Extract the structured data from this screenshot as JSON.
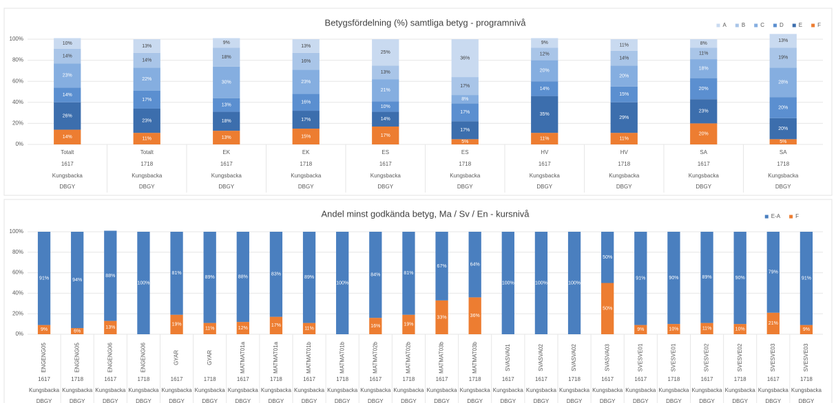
{
  "chart_data": [
    {
      "type": "stacked_bar",
      "title": "Betygsfördelning (%) samtliga betyg - programnivå",
      "categories": [
        "Totalt",
        "Totalt",
        "EK",
        "EK",
        "ES",
        "ES",
        "HV",
        "HV",
        "SA",
        "SA"
      ],
      "category_years": [
        "1617",
        "1718",
        "1617",
        "1718",
        "1617",
        "1718",
        "1617",
        "1718",
        "1617",
        "1718"
      ],
      "category_places": [
        "Kungsbacka",
        "Kungsbacka",
        "Kungsbacka",
        "Kungsbacka",
        "Kungsbacka",
        "Kungsbacka",
        "Kungsbacka",
        "Kungsbacka",
        "Kungsbacka",
        "Kungsbacka"
      ],
      "category_schools": [
        "DBGY",
        "DBGY",
        "DBGY",
        "DBGY",
        "DBGY",
        "DBGY",
        "DBGY",
        "DBGY",
        "DBGY",
        "DBGY"
      ],
      "legend_order": [
        5,
        4,
        3,
        2,
        1,
        0
      ],
      "series": [
        {
          "name": "F",
          "color": "#ed7d31",
          "label_color": "#ffffff",
          "values": [
            14,
            11,
            13,
            15,
            17,
            5,
            11,
            11,
            20,
            5
          ],
          "value_labels": [
            "14%",
            "11%",
            "13%",
            "15%",
            "17%",
            "5%",
            "11%",
            "11%",
            "20%",
            "5%"
          ]
        },
        {
          "name": "E",
          "color": "#3c6ead",
          "label_color": "#ffffff",
          "values": [
            26,
            23,
            18,
            17,
            14,
            17,
            35,
            29,
            23,
            20
          ],
          "value_labels": [
            "26%",
            "23%",
            "18%",
            "17%",
            "14%",
            "17%",
            "35%",
            "29%",
            "23%",
            "20%"
          ]
        },
        {
          "name": "D",
          "color": "#5b8fd0",
          "label_color": "#ffffff",
          "values": [
            14,
            17,
            13,
            16,
            10,
            17,
            14,
            15,
            20,
            20
          ],
          "value_labels": [
            "14%",
            "17%",
            "13%",
            "16%",
            "10%",
            "17%",
            "14%",
            "15%",
            "20%",
            "20%"
          ]
        },
        {
          "name": "C",
          "color": "#85aee0",
          "label_color": "#ffffff",
          "values": [
            23,
            22,
            30,
            23,
            21,
            8,
            20,
            20,
            18,
            28
          ],
          "value_labels": [
            "23%",
            "22%",
            "30%",
            "23%",
            "21%",
            "8%",
            "20%",
            "20%",
            "18%",
            "28%"
          ]
        },
        {
          "name": "B",
          "color": "#a9c5e8",
          "label_color": "#404040",
          "values": [
            14,
            14,
            18,
            16,
            13,
            17,
            12,
            14,
            11,
            19
          ],
          "value_labels": [
            "14%",
            "14%",
            "18%",
            "16%",
            "13%",
            "17%",
            "12%",
            "14%",
            "11%",
            "19%"
          ]
        },
        {
          "name": "A",
          "color": "#c9daf0",
          "label_color": "#404040",
          "values": [
            10,
            13,
            9,
            13,
            25,
            36,
            9,
            11,
            8,
            13
          ],
          "value_labels": [
            "10%",
            "13%",
            "9%",
            "13%",
            "25%",
            "36%",
            "9%",
            "11%",
            "8%",
            "13%"
          ]
        }
      ],
      "ylim": [
        0,
        100
      ],
      "yticks": [
        {
          "value": 0,
          "label": "0%"
        },
        {
          "value": 20,
          "label": "20%"
        },
        {
          "value": 40,
          "label": "40%"
        },
        {
          "value": 60,
          "label": "60%"
        },
        {
          "value": 80,
          "label": "80%"
        },
        {
          "value": 100,
          "label": "100%"
        }
      ],
      "grid": true,
      "legend": "top-right"
    },
    {
      "type": "stacked_bar",
      "title": "Andel minst godkända betyg, Ma / Sv / En - kursnivå",
      "categories": [
        "ENGENG05",
        "ENGENG05",
        "ENGENG06",
        "ENGENG06",
        "GYAR",
        "GYAR",
        "MATMAT01a",
        "MATMAT01a",
        "MATMAT01b",
        "MATMAT01b",
        "MATMAT02b",
        "MATMAT02b",
        "MATMAT03b",
        "MATMAT03b",
        "SVASVA01",
        "SVASVA02",
        "SVASVA02",
        "SVASVA03",
        "SVESVE01",
        "SVESVE01",
        "SVESVE02",
        "SVESVE02",
        "SVESVE03",
        "SVESVE03"
      ],
      "category_years": [
        "1617",
        "1718",
        "1617",
        "1718",
        "1617",
        "1718",
        "1617",
        "1718",
        "1617",
        "1718",
        "1617",
        "1718",
        "1617",
        "1718",
        "1617",
        "1617",
        "1718",
        "1617",
        "1617",
        "1718",
        "1617",
        "1718",
        "1617",
        "1718"
      ],
      "category_places": [
        "Kungsbacka",
        "Kungsbacka",
        "Kungsbacka",
        "Kungsbacka",
        "Kungsbacka",
        "Kungsbacka",
        "Kungsbacka",
        "Kungsbacka",
        "Kungsbacka",
        "Kungsbacka",
        "Kungsbacka",
        "Kungsbacka",
        "Kungsbacka",
        "Kungsbacka",
        "Kungsbacka",
        "Kungsbacka",
        "Kungsbacka",
        "Kungsbacka",
        "Kungsbacka",
        "Kungsbacka",
        "Kungsbacka",
        "Kungsbacka",
        "Kungsbacka",
        "Kungsbacka"
      ],
      "category_schools": [
        "DBGY",
        "DBGY",
        "DBGY",
        "DBGY",
        "DBGY",
        "DBGY",
        "DBGY",
        "DBGY",
        "DBGY",
        "DBGY",
        "DBGY",
        "DBGY",
        "DBGY",
        "DBGY",
        "DBGY",
        "DBGY",
        "DBGY",
        "DBGY",
        "DBGY",
        "DBGY",
        "DBGY",
        "DBGY",
        "DBGY",
        "DBGY"
      ],
      "legend_order": [
        1,
        0
      ],
      "series": [
        {
          "name": "F",
          "color": "#ed7d31",
          "label_color": "#ffffff",
          "values": [
            9,
            6,
            13,
            0,
            19,
            11,
            12,
            17,
            11,
            0,
            16,
            19,
            33,
            36,
            0,
            0,
            0,
            50,
            9,
            10,
            11,
            10,
            21,
            9
          ],
          "value_labels": [
            "9%",
            "6%",
            "13%",
            null,
            "19%",
            "11%",
            "12%",
            "17%",
            "11%",
            null,
            "16%",
            "19%",
            "33%",
            "36%",
            null,
            null,
            null,
            "50%",
            "9%",
            "10%",
            "11%",
            "10%",
            "21%",
            "9%"
          ]
        },
        {
          "name": "E-A",
          "color": "#4a7fbf",
          "label_color": "#ffffff",
          "values": [
            91,
            94,
            88,
            100,
            81,
            89,
            88,
            83,
            89,
            100,
            84,
            81,
            67,
            64,
            100,
            100,
            100,
            50,
            91,
            90,
            89,
            90,
            79,
            91
          ],
          "value_labels": [
            "91%",
            "94%",
            "88%",
            "100%",
            "81%",
            "89%",
            "88%",
            "83%",
            "89%",
            "100%",
            "84%",
            "81%",
            "67%",
            "64%",
            "100%",
            "100%",
            "100%",
            "50%",
            "91%",
            "90%",
            "89%",
            "90%",
            "79%",
            "91%"
          ]
        }
      ],
      "ylim": [
        0,
        100
      ],
      "yticks": [
        {
          "value": 0,
          "label": "0%"
        },
        {
          "value": 20,
          "label": "20%"
        },
        {
          "value": 40,
          "label": "40%"
        },
        {
          "value": 60,
          "label": "60%"
        },
        {
          "value": 80,
          "label": "80%"
        },
        {
          "value": 100,
          "label": "100%"
        }
      ],
      "grid": true,
      "legend": "top-right",
      "rotate_categories": true
    }
  ]
}
